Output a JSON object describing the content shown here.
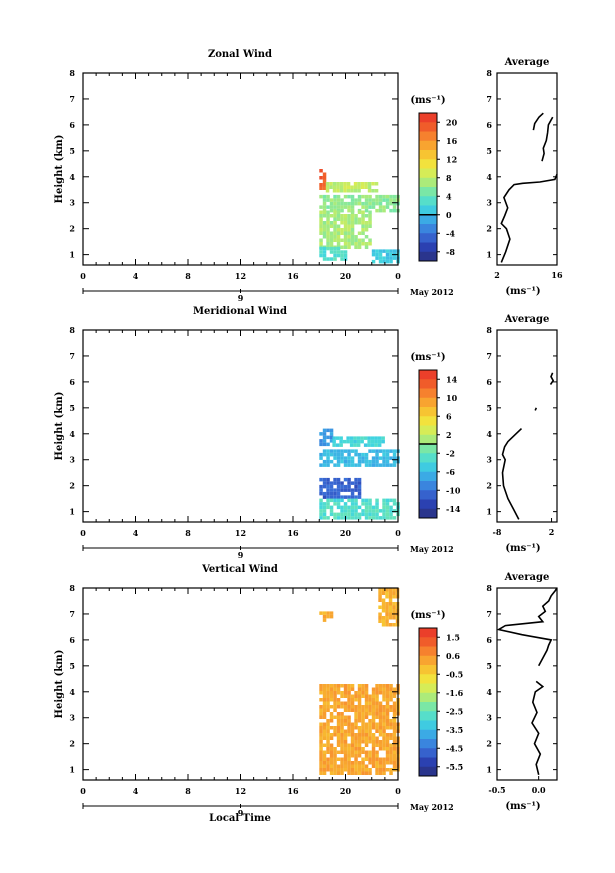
{
  "figure": {
    "month_label": "May 2012",
    "day_label": "9",
    "xlabel": "Local Time",
    "xticks": [
      "0",
      "4",
      "8",
      "12",
      "16",
      "20",
      "0"
    ]
  },
  "chart_data": [
    {
      "type": "heatmap",
      "title": "Zonal Wind",
      "ylabel": "Height (km)",
      "xlabel": "",
      "x_range_hours": [
        0,
        24
      ],
      "ylim": [
        0.6,
        8.0
      ],
      "yticks": [
        "1",
        "2",
        "3",
        "4",
        "5",
        "6",
        "7",
        "8"
      ],
      "colorbar": {
        "unit": "(ms⁻¹)",
        "min": -10,
        "max": 22,
        "tick_labels": [
          "20",
          "16",
          "12",
          "8",
          "4",
          "0",
          "-4",
          "-8"
        ],
        "zero_line": 0
      },
      "data_regions": [
        {
          "x": [
            18.0,
            18.5
          ],
          "y": [
            3.6,
            4.3
          ],
          "value": 19
        },
        {
          "x": [
            18.5,
            22.5
          ],
          "y": [
            3.5,
            3.8
          ],
          "value": 8
        },
        {
          "x": [
            18.0,
            24.0
          ],
          "y": [
            2.7,
            3.3
          ],
          "value": 6
        },
        {
          "x": [
            18.0,
            22.0
          ],
          "y": [
            1.3,
            2.7
          ],
          "value": 7
        },
        {
          "x": [
            18.0,
            20.0
          ],
          "y": [
            0.8,
            1.3
          ],
          "value": 3
        },
        {
          "x": [
            22.0,
            24.0
          ],
          "y": [
            0.7,
            1.2
          ],
          "value": 1
        }
      ],
      "average_profile": {
        "title": "Average",
        "xlabel": "(ms⁻¹)",
        "xlim": [
          2,
          16
        ],
        "xticks": [
          "2",
          "16"
        ],
        "yticks": [
          "1",
          "2",
          "3",
          "4",
          "5",
          "6",
          "7",
          "8"
        ],
        "segments": [
          {
            "x": [
              3.0,
              4.0,
              5.0,
              4.2,
              3.0,
              3.8,
              4.5,
              3.6,
              4.8,
              6.0,
              8.0,
              12.0,
              15.5,
              16.0
            ],
            "y": [
              0.7,
              1.1,
              1.6,
              2.0,
              2.2,
              2.5,
              2.8,
              3.2,
              3.5,
              3.7,
              3.75,
              3.8,
              3.9,
              4.1
            ]
          },
          {
            "x": [
              12.5,
              13.0,
              12.8,
              13.5,
              13.8,
              14.0,
              15.0
            ],
            "y": [
              4.6,
              4.9,
              5.1,
              5.4,
              5.7,
              6.0,
              6.3
            ]
          },
          {
            "x": [
              10.5,
              10.8,
              11.8,
              12.8
            ],
            "y": [
              5.8,
              6.05,
              6.3,
              6.45
            ]
          }
        ]
      }
    },
    {
      "type": "heatmap",
      "title": "Meridional Wind",
      "ylabel": "Height (km)",
      "xlabel": "",
      "x_range_hours": [
        0,
        24
      ],
      "ylim": [
        0.6,
        8.0
      ],
      "yticks": [
        "1",
        "2",
        "3",
        "4",
        "5",
        "6",
        "7",
        "8"
      ],
      "colorbar": {
        "unit": "(ms⁻¹)",
        "min": -16,
        "max": 16,
        "tick_labels": [
          "14",
          "10",
          "6",
          "2",
          "-2",
          "-6",
          "-10",
          "-14"
        ],
        "zero_line": 0
      },
      "data_regions": [
        {
          "x": [
            18.0,
            19.0
          ],
          "y": [
            3.6,
            4.2
          ],
          "value": -8
        },
        {
          "x": [
            19.0,
            23.0
          ],
          "y": [
            3.6,
            3.9
          ],
          "value": -4
        },
        {
          "x": [
            18.0,
            24.0
          ],
          "y": [
            2.8,
            3.4
          ],
          "value": -6
        },
        {
          "x": [
            18.0,
            21.0
          ],
          "y": [
            1.5,
            2.3
          ],
          "value": -11
        },
        {
          "x": [
            18.0,
            24.0
          ],
          "y": [
            0.8,
            1.5
          ],
          "value": -3
        }
      ],
      "average_profile": {
        "title": "Average",
        "xlabel": "(ms⁻¹)",
        "xlim": [
          -8,
          3
        ],
        "xticks": [
          "-8",
          "2"
        ],
        "yticks": [
          "1",
          "2",
          "3",
          "4",
          "5",
          "6",
          "7",
          "8"
        ],
        "segments": [
          {
            "x": [
              -4.0,
              -5.0,
              -6.0,
              -6.8,
              -7.0,
              -6.5,
              -7.0,
              -6.6,
              -6.0,
              -3.5
            ],
            "y": [
              0.7,
              1.1,
              1.5,
              2.0,
              2.5,
              3.0,
              3.2,
              3.5,
              3.7,
              4.2
            ]
          },
          {
            "x": [
              -1.0,
              -0.8
            ],
            "y": [
              4.9,
              5.0
            ]
          },
          {
            "x": [
              1.8,
              2.3,
              1.9,
              2.2
            ],
            "y": [
              5.9,
              6.05,
              6.2,
              6.35
            ]
          }
        ]
      }
    },
    {
      "type": "heatmap",
      "title": "Vertical Wind",
      "ylabel": "Height (km)",
      "xlabel": "Local Time",
      "x_range_hours": [
        0,
        24
      ],
      "ylim": [
        0.6,
        8.0
      ],
      "yticks": [
        "1",
        "2",
        "3",
        "4",
        "5",
        "6",
        "7",
        "8"
      ],
      "colorbar": {
        "unit": "(ms⁻¹)",
        "min": -6.0,
        "max": 2.0,
        "tick_labels": [
          "1.5",
          "0.6",
          "-0.5",
          "-1.6",
          "-2.5",
          "-3.5",
          "-4.5",
          "-5.5"
        ],
        "zero_line": null
      },
      "data_regions": [
        {
          "x": [
            18.0,
            24.0
          ],
          "y": [
            0.8,
            4.3
          ],
          "value": 0.2
        },
        {
          "x": [
            22.5,
            24.0
          ],
          "y": [
            6.5,
            8.0
          ],
          "value": 0.0
        },
        {
          "x": [
            18.0,
            19.0
          ],
          "y": [
            6.7,
            7.1
          ],
          "value": 0.1
        }
      ],
      "average_profile": {
        "title": "Average",
        "xlabel": "(ms⁻¹)",
        "xlim": [
          -0.5,
          0.22
        ],
        "xticks": [
          "-0.5",
          "0.0"
        ],
        "yticks": [
          "1",
          "2",
          "3",
          "4",
          "5",
          "6",
          "7",
          "8"
        ],
        "segments": [
          {
            "x": [
              0.0,
              -0.03,
              0.02,
              -0.05,
              0.0,
              -0.08,
              -0.02,
              -0.07,
              -0.04,
              0.05,
              -0.03
            ],
            "y": [
              0.8,
              1.2,
              1.6,
              2.0,
              2.4,
              2.8,
              3.2,
              3.6,
              4.0,
              4.2,
              4.4
            ]
          },
          {
            "x": [
              0.0,
              0.05,
              0.1,
              0.12,
              0.15,
              -0.2,
              -0.48,
              -0.4,
              0.05,
              0.0,
              0.08,
              0.05,
              0.12,
              0.15,
              0.2,
              0.22
            ],
            "y": [
              5.0,
              5.3,
              5.6,
              5.8,
              6.0,
              6.2,
              6.4,
              6.55,
              6.7,
              6.9,
              7.1,
              7.3,
              7.5,
              7.7,
              7.9,
              8.0
            ]
          }
        ]
      }
    }
  ]
}
